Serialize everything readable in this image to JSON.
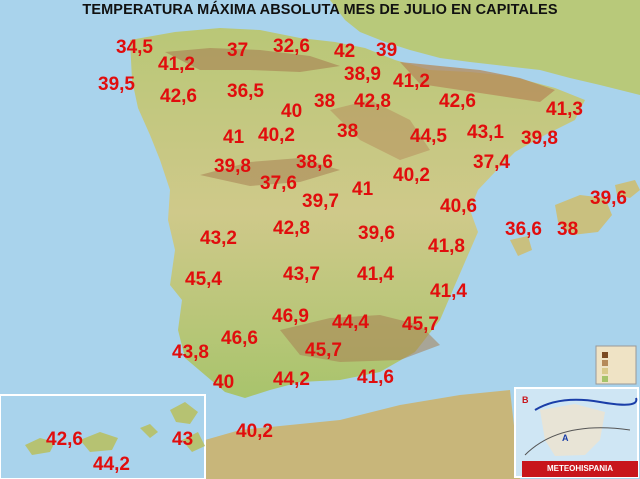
{
  "title": "TEMPERATURA MÁXIMA ABSOLUTA MES DE JULIO EN CAPITALES",
  "colors": {
    "sea": "#a9d3ec",
    "land_low": "#a6c36a",
    "land_mid": "#d9c98a",
    "mountain": "#b58a5a",
    "temp_text": "#e10d0d",
    "logo_bg": "#c8151b"
  },
  "temperatures": [
    {
      "value": "34,5"
    },
    {
      "value": "37"
    },
    {
      "value": "32,6"
    },
    {
      "value": "42"
    },
    {
      "value": "39"
    },
    {
      "value": "41,2"
    },
    {
      "value": "39,5"
    },
    {
      "value": "38,9"
    },
    {
      "value": "41,2"
    },
    {
      "value": "42,6"
    },
    {
      "value": "36,5"
    },
    {
      "value": "40"
    },
    {
      "value": "38"
    },
    {
      "value": "42,8"
    },
    {
      "value": "42,6"
    },
    {
      "value": "41,3"
    },
    {
      "value": "41"
    },
    {
      "value": "40,2"
    },
    {
      "value": "38"
    },
    {
      "value": "44,5"
    },
    {
      "value": "43,1"
    },
    {
      "value": "39,8"
    },
    {
      "value": "39,8"
    },
    {
      "value": "38,6"
    },
    {
      "value": "37,4"
    },
    {
      "value": "37,6"
    },
    {
      "value": "41"
    },
    {
      "value": "40,2"
    },
    {
      "value": "39,7"
    },
    {
      "value": "39,6"
    },
    {
      "value": "40,6"
    },
    {
      "value": "38"
    },
    {
      "value": "43,2"
    },
    {
      "value": "42,8"
    },
    {
      "value": "39,6"
    },
    {
      "value": "41,8"
    },
    {
      "value": "36,6"
    },
    {
      "value": "45,4"
    },
    {
      "value": "43,7"
    },
    {
      "value": "41,4"
    },
    {
      "value": "41,4"
    },
    {
      "value": "46,9"
    },
    {
      "value": "44,4"
    },
    {
      "value": "45,7"
    },
    {
      "value": "46,6"
    },
    {
      "value": "43,8"
    },
    {
      "value": "45,7"
    },
    {
      "value": "40"
    },
    {
      "value": "44,2"
    },
    {
      "value": "41,6"
    },
    {
      "value": "42,6"
    },
    {
      "value": "43"
    },
    {
      "value": "40,2"
    },
    {
      "value": "44,2"
    }
  ],
  "inset": {
    "logo": "METEOHISPANIA",
    "label_b": "B",
    "label_a": "A"
  }
}
